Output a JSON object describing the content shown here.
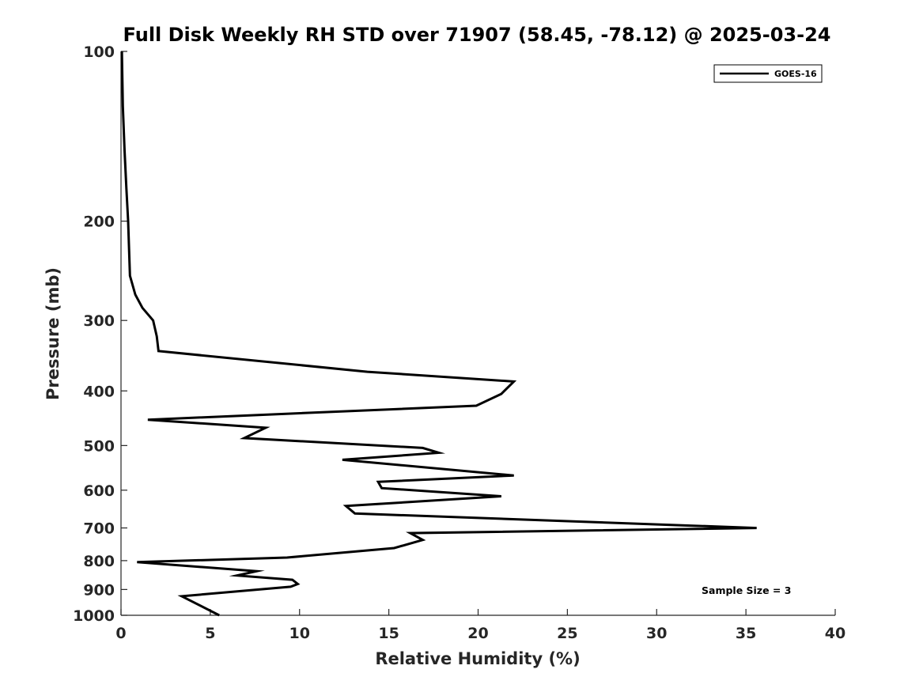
{
  "chart_data": {
    "type": "line",
    "title": "Full Disk Weekly RH STD over 71907 (58.45, -78.12) @ 2025-03-24",
    "xlabel": "Relative Humidity (%)",
    "ylabel": "Pressure (mb)",
    "xlim": [
      0,
      40
    ],
    "ylim": [
      100,
      1000
    ],
    "yscale": "log",
    "yreversed": true,
    "grid": false,
    "legend_position": "top-right",
    "x_ticks": [
      0,
      5,
      10,
      15,
      20,
      25,
      30,
      35,
      40
    ],
    "x_tick_labels": [
      "0",
      "5",
      "10",
      "15",
      "20",
      "25",
      "30",
      "35",
      "40"
    ],
    "y_ticks": [
      100,
      200,
      300,
      400,
      500,
      600,
      700,
      800,
      900,
      1000
    ],
    "y_tick_labels": [
      "100",
      "200",
      "300",
      "400",
      "500",
      "600",
      "700",
      "800",
      "900",
      "1000"
    ],
    "series": [
      {
        "name": "GOES-16",
        "color": "#000000",
        "rh": [
          0.05,
          0.1,
          0.2,
          0.3,
          0.4,
          0.5,
          0.8,
          1.2,
          1.8,
          2.0,
          2.1,
          13.8,
          22.0,
          21.3,
          19.9,
          1.5,
          8.1,
          6.9,
          16.9,
          17.8,
          12.4,
          22.0,
          14.4,
          14.6,
          21.3,
          12.6,
          13.1,
          35.6,
          16.2,
          16.9,
          15.3,
          9.3,
          0.9,
          7.6,
          6.5,
          9.6,
          9.9,
          9.5,
          3.4,
          5.5
        ],
        "pressure": [
          100,
          125,
          150,
          175,
          200,
          250,
          270,
          285,
          300,
          320,
          340,
          370,
          385,
          405,
          425,
          450,
          465,
          485,
          505,
          515,
          530,
          565,
          580,
          595,
          615,
          640,
          660,
          700,
          715,
          735,
          760,
          790,
          805,
          835,
          850,
          865,
          880,
          890,
          925,
          1000
        ]
      }
    ],
    "annotations": [
      "Sample Size = 3"
    ]
  }
}
